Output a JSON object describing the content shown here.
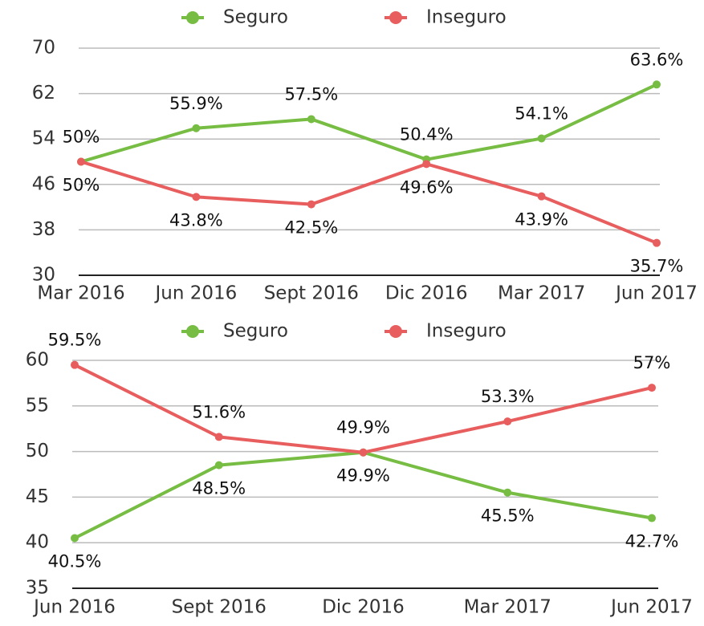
{
  "chart_data": [
    {
      "type": "line",
      "categories": [
        "Mar 2016",
        "Jun 2016",
        "Sept 2016",
        "Dic 2016",
        "Mar 2017",
        "Jun 2017"
      ],
      "series": [
        {
          "name": "Seguro",
          "color": "#77bd43",
          "values": [
            50,
            55.9,
            57.5,
            50.4,
            54.1,
            63.6
          ],
          "value_labels": [
            "50%",
            "55.9%",
            "57.5%",
            "50.4%",
            "54.1%",
            "63.6%"
          ]
        },
        {
          "name": "Inseguro",
          "color": "#e85e5e",
          "values": [
            50,
            43.8,
            42.5,
            49.6,
            43.9,
            35.7
          ],
          "value_labels": [
            "50%",
            "43.8%",
            "42.5%",
            "49.6%",
            "43.9%",
            "35.7%"
          ]
        }
      ],
      "ylim": [
        30,
        70
      ],
      "yticks": [
        30,
        38,
        46,
        54,
        62,
        70
      ],
      "grid": true
    },
    {
      "type": "line",
      "categories": [
        "Jun 2016",
        "Sept 2016",
        "Dic 2016",
        "Mar 2017",
        "Jun 2017"
      ],
      "series": [
        {
          "name": "Seguro",
          "color": "#77bd43",
          "values": [
            40.5,
            48.5,
            49.9,
            45.5,
            42.7
          ],
          "value_labels": [
            "40.5%",
            "48.5%",
            "49.9%",
            "45.5%",
            "42.7%"
          ]
        },
        {
          "name": "Inseguro",
          "color": "#e85e5e",
          "values": [
            59.5,
            51.6,
            49.9,
            53.3,
            57
          ],
          "value_labels": [
            "59.5%",
            "51.6%",
            "49.9%",
            "53.3%",
            "57%"
          ]
        }
      ],
      "ylim": [
        35,
        60
      ],
      "yticks": [
        35,
        40,
        45,
        50,
        55,
        60
      ],
      "grid": true
    }
  ]
}
